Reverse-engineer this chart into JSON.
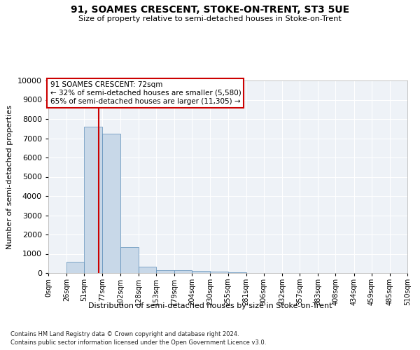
{
  "title": "91, SOAMES CRESCENT, STOKE-ON-TRENT, ST3 5UE",
  "subtitle": "Size of property relative to semi-detached houses in Stoke-on-Trent",
  "xlabel": "Distribution of semi-detached houses by size in Stoke-on-Trent",
  "ylabel": "Number of semi-detached properties",
  "footnote1": "Contains HM Land Registry data © Crown copyright and database right 2024.",
  "footnote2": "Contains public sector information licensed under the Open Government Licence v3.0.",
  "bin_edges": [
    0,
    26,
    51,
    77,
    102,
    128,
    153,
    179,
    204,
    230,
    255,
    281,
    306,
    332,
    357,
    383,
    408,
    434,
    459,
    485,
    510
  ],
  "bar_heights": [
    0,
    570,
    7600,
    7250,
    1350,
    320,
    160,
    130,
    100,
    60,
    20,
    10,
    5,
    3,
    2,
    1,
    1,
    0,
    0,
    0
  ],
  "bar_color": "#c8d8e8",
  "bar_edge_color": "#5b8db8",
  "property_size": 72,
  "property_line_color": "#cc0000",
  "annotation_line1": "91 SOAMES CRESCENT: 72sqm",
  "annotation_line2": "← 32% of semi-detached houses are smaller (5,580)",
  "annotation_line3": "65% of semi-detached houses are larger (11,305) →",
  "annotation_box_color": "#ffffff",
  "annotation_box_edgecolor": "#cc0000",
  "ylim": [
    0,
    10000
  ],
  "xlim": [
    0,
    510
  ],
  "tick_labels": [
    "0sqm",
    "26sqm",
    "51sqm",
    "77sqm",
    "102sqm",
    "128sqm",
    "153sqm",
    "179sqm",
    "204sqm",
    "230sqm",
    "255sqm",
    "281sqm",
    "306sqm",
    "332sqm",
    "357sqm",
    "383sqm",
    "408sqm",
    "434sqm",
    "459sqm",
    "485sqm",
    "510sqm"
  ],
  "bg_color": "#eef2f7",
  "grid_color": "#ffffff",
  "yticks": [
    0,
    1000,
    2000,
    3000,
    4000,
    5000,
    6000,
    7000,
    8000,
    9000,
    10000
  ]
}
